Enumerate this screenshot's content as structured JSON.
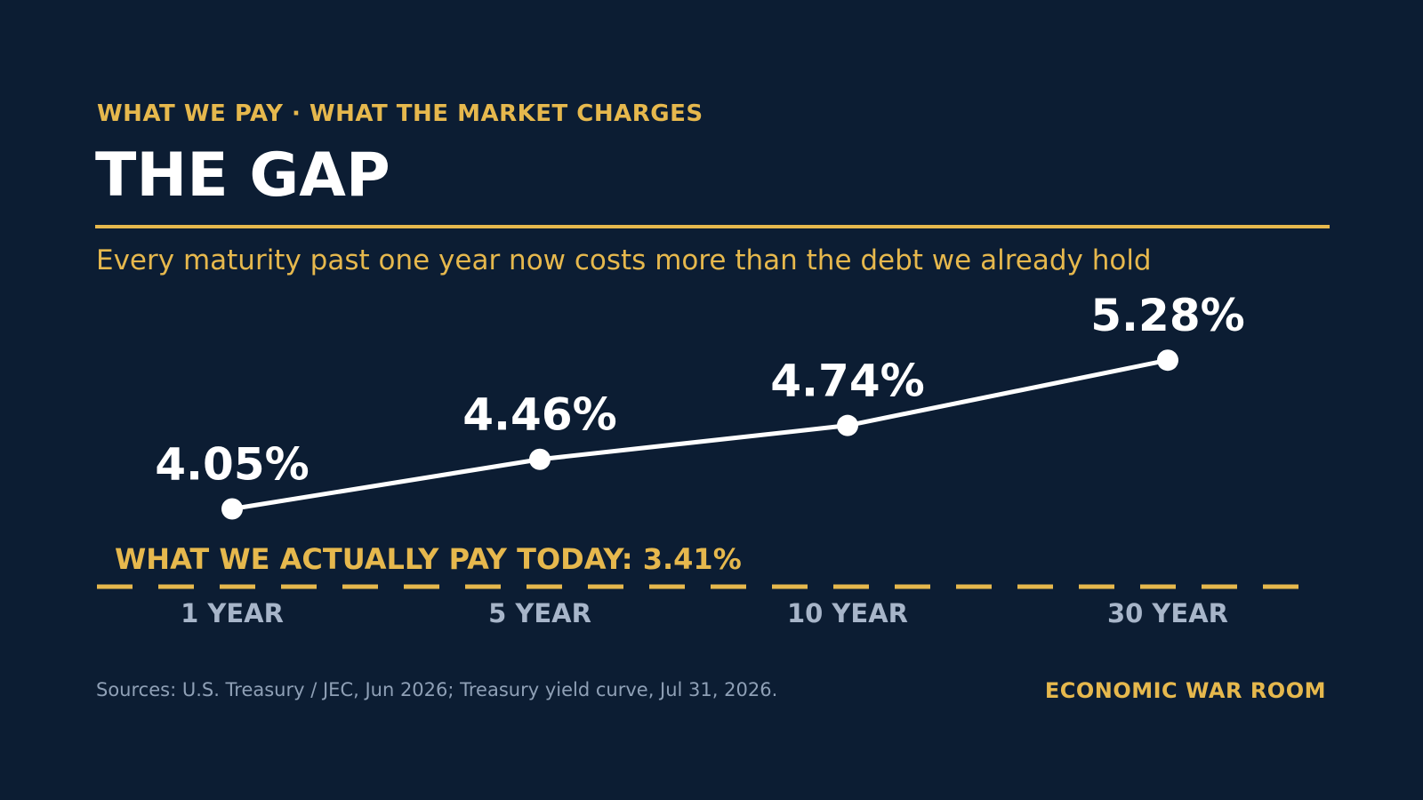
{
  "header": {
    "kicker": "WHAT WE PAY  ·  WHAT THE MARKET CHARGES",
    "title": "THE GAP",
    "subtitle": "Every maturity past one year now costs more than the debt we already hold"
  },
  "colors": {
    "background": "#0c1d33",
    "accent": "#e6b84d",
    "line": "#ffffff",
    "axis_label": "#a7b5c9",
    "footnote": "#8fa0b6"
  },
  "chart_data": {
    "type": "line",
    "categories": [
      "1 YEAR",
      "5 YEAR",
      "10 YEAR",
      "30 YEAR"
    ],
    "values": [
      4.05,
      4.46,
      4.74,
      5.28
    ],
    "value_labels": [
      "4.05%",
      "4.46%",
      "4.74%",
      "5.28%"
    ],
    "reference_line": {
      "value": 3.41,
      "label": "WHAT WE ACTUALLY PAY TODAY:  3.41%",
      "style": "dashed"
    },
    "grid": false,
    "legend": "none"
  },
  "footer": {
    "sources": "Sources: U.S. Treasury / JEC, Jun 2026; Treasury yield curve, Jul 31, 2026.",
    "brand": "ECONOMIC WAR ROOM"
  }
}
